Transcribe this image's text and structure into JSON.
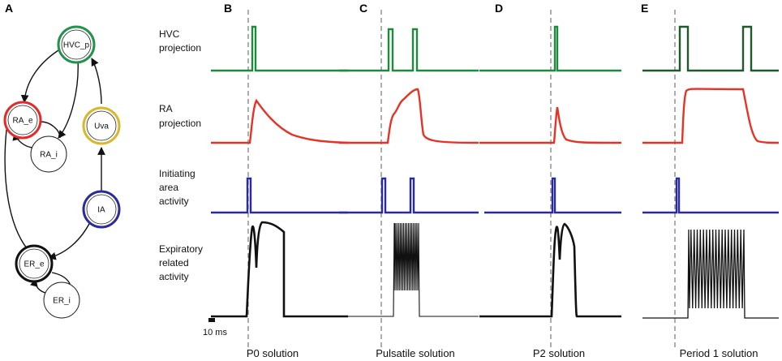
{
  "panel_letters": [
    "A",
    "B",
    "C",
    "D",
    "E"
  ],
  "nodes": {
    "hvc_p": "HVC_p",
    "ra_e": "RA_e",
    "ra_i": "RA_i",
    "uva": "Uva",
    "ia": "IA",
    "er_e": "ER_e",
    "er_i": "ER_i"
  },
  "row_labels": {
    "hvc": [
      "HVC",
      "projection"
    ],
    "ra": [
      "RA",
      "projection"
    ],
    "init": [
      "Initiating",
      "area",
      "activity"
    ],
    "exp": [
      "Expiratory",
      "related",
      "activity"
    ]
  },
  "columns": [
    "P0 solution",
    "Pulsatile solution",
    "P2 solution",
    "Period 1 solution"
  ],
  "scale_bar": "10 ms",
  "colors": {
    "hvc": "#1e8a3c",
    "ra": "#e53325",
    "init": "#2a2aa0",
    "exp": "#111111",
    "hvc_node": "#22934a",
    "ra_node": "#e32b2b",
    "uva_node": "#d9b72c",
    "ia_node": "#2b2b9a",
    "er_node": "#111111"
  }
}
